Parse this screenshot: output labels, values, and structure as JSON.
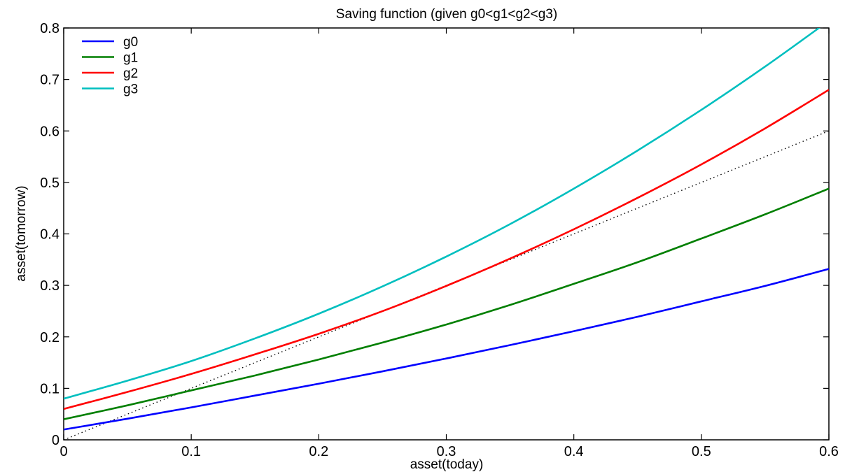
{
  "chart_data": {
    "type": "line",
    "title": "Saving function (given g0<g1<g2<g3)",
    "xlabel": "asset(today)",
    "ylabel": "asset(tomorrow)",
    "xlim": [
      0,
      0.6
    ],
    "ylim": [
      0,
      0.8
    ],
    "xticks": [
      "0",
      "0.1",
      "0.2",
      "0.3",
      "0.4",
      "0.5",
      "0.6"
    ],
    "yticks": [
      "0",
      "0.1",
      "0.2",
      "0.3",
      "0.4",
      "0.5",
      "0.6",
      "0.7",
      "0.8"
    ],
    "grid": false,
    "legend_position": "top-left",
    "x": [
      0,
      0.05,
      0.1,
      0.15,
      0.2,
      0.25,
      0.3,
      0.35,
      0.4,
      0.45,
      0.5,
      0.55,
      0.6
    ],
    "series": [
      {
        "name": "g0",
        "color": "#0000ff",
        "values": [
          0.02,
          0.041,
          0.063,
          0.086,
          0.109,
          0.133,
          0.158,
          0.184,
          0.211,
          0.239,
          0.269,
          0.299,
          0.332
        ]
      },
      {
        "name": "g1",
        "color": "#007f00",
        "values": [
          0.04,
          0.067,
          0.096,
          0.125,
          0.156,
          0.189,
          0.224,
          0.262,
          0.303,
          0.345,
          0.391,
          0.438,
          0.488
        ]
      },
      {
        "name": "g2",
        "color": "#ff0000",
        "values": [
          0.06,
          0.093,
          0.128,
          0.166,
          0.206,
          0.25,
          0.299,
          0.352,
          0.409,
          0.47,
          0.535,
          0.605,
          0.68
        ]
      },
      {
        "name": "g3",
        "color": "#00bfbf",
        "values": [
          0.08,
          0.115,
          0.153,
          0.197,
          0.245,
          0.298,
          0.356,
          0.419,
          0.488,
          0.562,
          0.641,
          0.725,
          0.814
        ]
      }
    ],
    "reference_line": {
      "style": "dotted",
      "color": "#000000",
      "x": [
        0,
        0.6
      ],
      "y": [
        0,
        0.6
      ]
    }
  }
}
